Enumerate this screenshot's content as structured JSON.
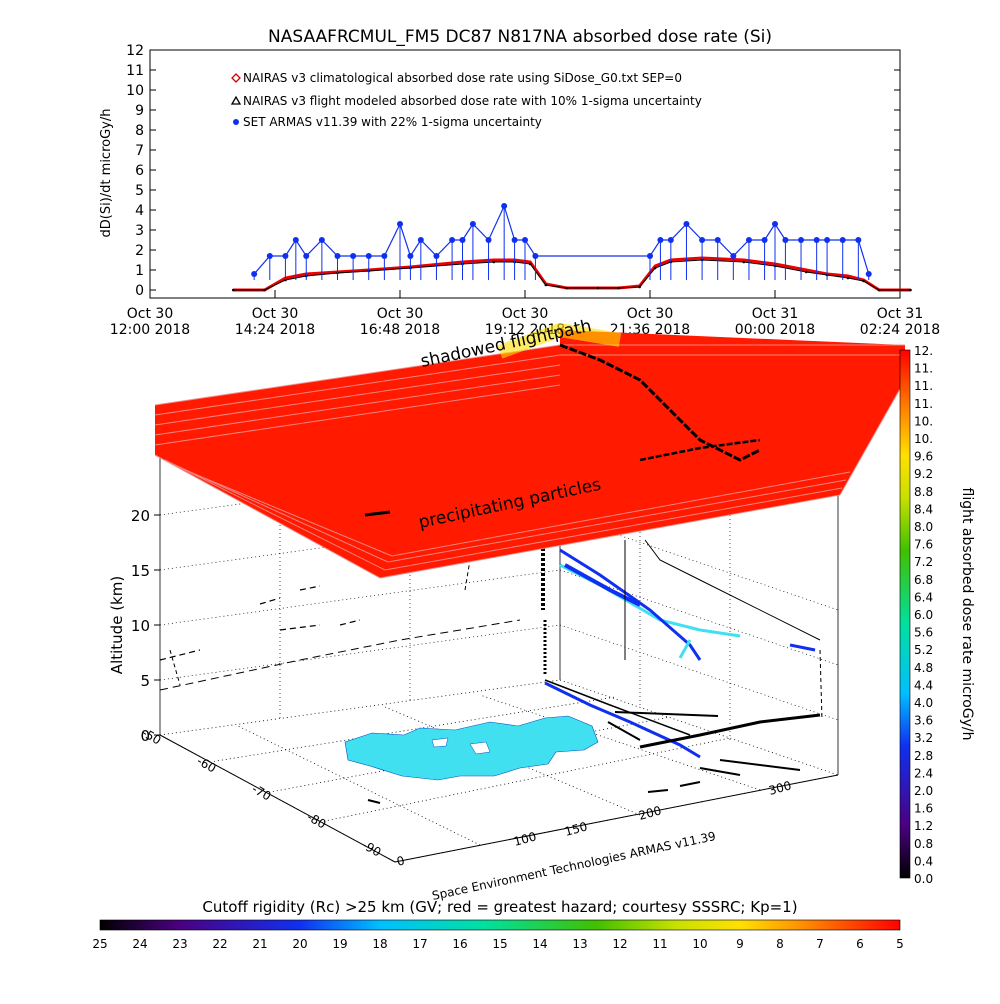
{
  "chart_data": [
    {
      "type": "line",
      "title": "NASAAFRCMUL_FM5 DC87 N817NA absorbed dose rate (Si)",
      "ylabel": "dD(Si)/dt microGy/h",
      "xlabel": "",
      "ylim": [
        0,
        12
      ],
      "yticks": [
        "0",
        "1",
        "2",
        "3",
        "4",
        "5",
        "6",
        "7",
        "8",
        "9",
        "10",
        "11",
        "12"
      ],
      "xticks": [
        {
          "top": "Oct 30",
          "bottom": "12:00 2018"
        },
        {
          "top": "Oct 30",
          "bottom": "14:24 2018"
        },
        {
          "top": "Oct 30",
          "bottom": "16:48 2018"
        },
        {
          "top": "Oct 30",
          "bottom": "19:12 2018"
        },
        {
          "top": "Oct 30",
          "bottom": "21:36 2018"
        },
        {
          "top": "Oct 31",
          "bottom": "00:00 2018"
        },
        {
          "top": "Oct 31",
          "bottom": "02:24 2018"
        }
      ],
      "x_unit": "hours after Oct 30 12:00",
      "legend": [
        {
          "name": "NAIRAS v3 climatological absorbed dose rate using SiDose_G0.txt SEP=0",
          "color": "#cc0000",
          "marker": "diamond"
        },
        {
          "name": "NAIRAS v3 flight modeled absorbed dose rate with 10% 1-sigma uncertainty",
          "color": "#000000",
          "marker": "triangle"
        },
        {
          "name": "SET ARMAS v11.39 with 22% 1-sigma uncertainty",
          "color": "#1030f0",
          "marker": "dot"
        }
      ],
      "series": [
        {
          "name": "NAIRAS v3 climatological absorbed dose rate using SiDose_G0.txt SEP=0",
          "color": "#ee0000",
          "x": [
            1.6,
            2.2,
            2.6,
            3.0,
            3.6,
            4.2,
            5.0,
            6.0,
            6.6,
            7.0,
            7.3,
            7.6,
            8.0,
            8.6,
            9.0,
            9.4,
            9.7,
            10.0,
            10.6,
            11.4,
            12.0,
            12.6,
            13.0,
            13.4,
            13.7,
            14.0,
            14.6
          ],
          "y": [
            0,
            0,
            0.6,
            0.8,
            0.9,
            1.0,
            1.15,
            1.4,
            1.5,
            1.5,
            1.4,
            0.3,
            0.1,
            0.1,
            0.1,
            0.2,
            1.2,
            1.5,
            1.6,
            1.5,
            1.3,
            1.0,
            0.8,
            0.7,
            0.5,
            0,
            0
          ]
        },
        {
          "name": "NAIRAS v3 flight modeled absorbed dose rate with 10% 1-sigma uncertainty",
          "color": "#000000",
          "x": [
            1.6,
            2.2,
            2.6,
            3.0,
            3.6,
            4.2,
            5.0,
            6.0,
            6.6,
            7.0,
            7.3,
            7.6,
            8.0,
            8.6,
            9.0,
            9.4,
            9.7,
            10.0,
            10.6,
            11.4,
            12.0,
            12.6,
            13.0,
            13.4,
            13.7,
            14.0,
            14.6
          ],
          "y": [
            0,
            0,
            0.5,
            0.7,
            0.85,
            0.95,
            1.1,
            1.3,
            1.4,
            1.4,
            1.3,
            0.25,
            0.1,
            0.1,
            0.1,
            0.15,
            1.1,
            1.4,
            1.5,
            1.4,
            1.2,
            0.9,
            0.75,
            0.6,
            0.45,
            0,
            0
          ]
        },
        {
          "name": "SET ARMAS v11.39 with 22% 1-sigma uncertainty",
          "color": "#1030f0",
          "x": [
            2.0,
            2.3,
            2.6,
            2.8,
            3.0,
            3.3,
            3.6,
            3.9,
            4.2,
            4.5,
            4.8,
            5.0,
            5.2,
            5.5,
            5.8,
            6.0,
            6.2,
            6.5,
            6.8,
            7.0,
            7.2,
            7.4,
            9.6,
            9.8,
            10.0,
            10.3,
            10.6,
            10.9,
            11.2,
            11.5,
            11.8,
            12.0,
            12.2,
            12.5,
            12.8,
            13.0,
            13.3,
            13.6,
            13.8
          ],
          "y": [
            0.8,
            1.7,
            1.7,
            2.5,
            1.7,
            2.5,
            1.7,
            1.7,
            1.7,
            1.7,
            3.3,
            1.7,
            2.5,
            1.7,
            2.5,
            2.5,
            3.3,
            2.5,
            4.2,
            2.5,
            2.5,
            1.7,
            1.7,
            2.5,
            2.5,
            3.3,
            2.5,
            2.5,
            1.7,
            2.5,
            2.5,
            3.3,
            2.5,
            2.5,
            2.5,
            2.5,
            2.5,
            2.5,
            0.8
          ]
        }
      ]
    },
    {
      "type": "scatter",
      "title": "",
      "ylabel": "Altitude (km)",
      "zticks": [
        "0",
        "5",
        "10",
        "15",
        "20"
      ],
      "lat_ticks": [
        "-50",
        "-60",
        "-70",
        "-80",
        "-90"
      ],
      "lon_ticks": [
        "0",
        "100",
        "150",
        "200",
        "300"
      ],
      "annotations": [
        "shadowed flightpath",
        "precipitating particles",
        "Space Environment Technologies ARMAS v11.39"
      ],
      "colorbar_right": {
        "label": "flight absorbed dose rate microGy/h",
        "ticks": [
          "0.0",
          "0.4",
          "0.8",
          "1.2",
          "1.6",
          "2.0",
          "2.4",
          "2.8",
          "3.2",
          "3.6",
          "4.0",
          "4.4",
          "4.8",
          "5.2",
          "5.6",
          "6.0",
          "6.4",
          "6.8",
          "7.2",
          "7.6",
          "8.0",
          "8.4",
          "8.8",
          "9.2",
          "9.6",
          "10.",
          "10.",
          "11.",
          "11.",
          "11.",
          "12."
        ]
      },
      "colorbar_bottom": {
        "label": "Cutoff rigidity (Rc) >25 km (GV; red = greatest hazard; courtesy SSSRC; Kp=1)",
        "ticks": [
          "25",
          "24",
          "23",
          "22",
          "21",
          "20",
          "19",
          "18",
          "17",
          "16",
          "15",
          "14",
          "13",
          "12",
          "11",
          "10",
          "9",
          "8",
          "7",
          "6",
          "5"
        ]
      }
    }
  ],
  "colors": {
    "red_layer": "#ff1a00",
    "red_edge": "#f08080",
    "cyan": "#40e0f0",
    "blue": "#1030f0"
  }
}
